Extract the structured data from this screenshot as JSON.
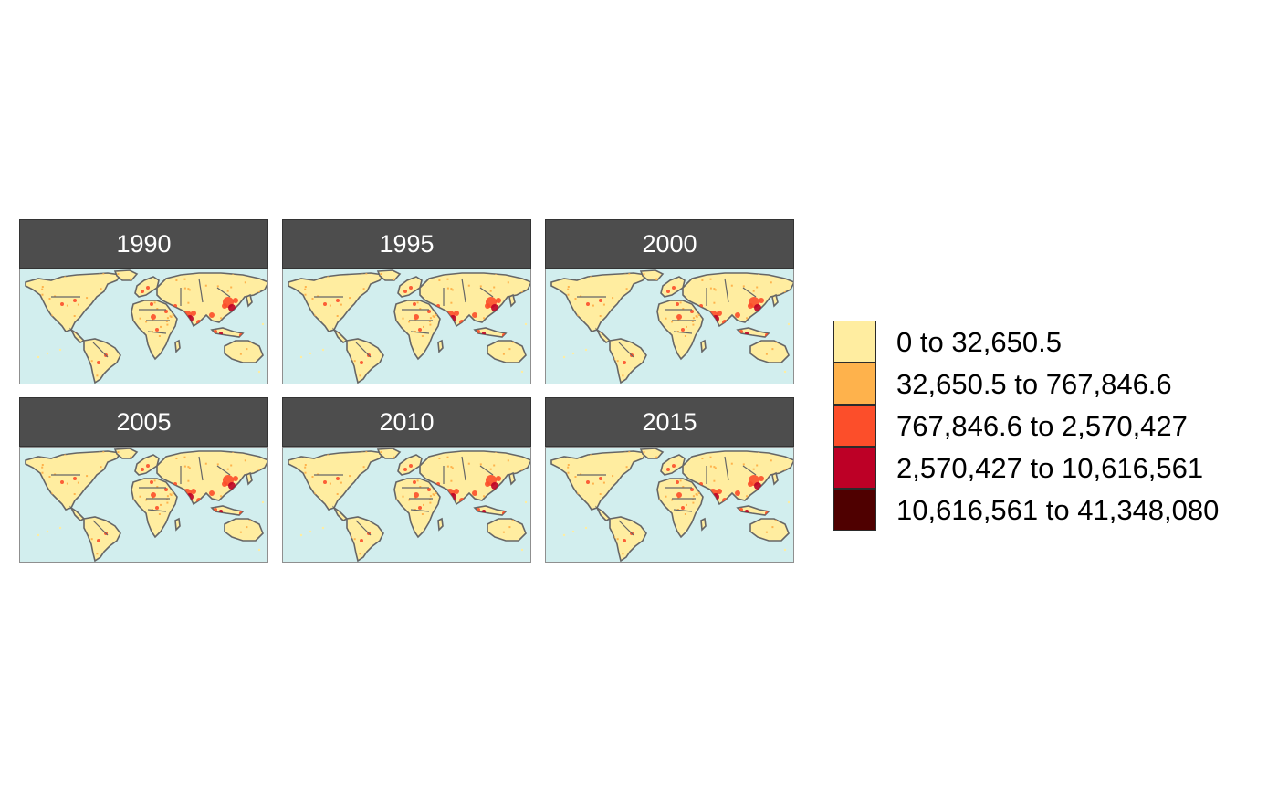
{
  "panels": [
    {
      "label": "1990"
    },
    {
      "label": "1995"
    },
    {
      "label": "2000"
    },
    {
      "label": "2005"
    },
    {
      "label": "2010"
    },
    {
      "label": "2015"
    }
  ],
  "legend": {
    "classes": [
      {
        "label": "0 to 32,650.5",
        "color": "#ffeda0"
      },
      {
        "label": "32,650.5 to 767,846.6",
        "color": "#feb24c"
      },
      {
        "label": "767,846.6 to 2,570,427",
        "color": "#fc4e2a"
      },
      {
        "label": "2,570,427 to 10,616,561",
        "color": "#bd0026"
      },
      {
        "label": "10,616,561 to 41,348,080",
        "color": "#4f0000"
      }
    ]
  },
  "colors": {
    "ocean": "#d2eeee",
    "border": "#666666",
    "strip": "#4d4d4d"
  }
}
